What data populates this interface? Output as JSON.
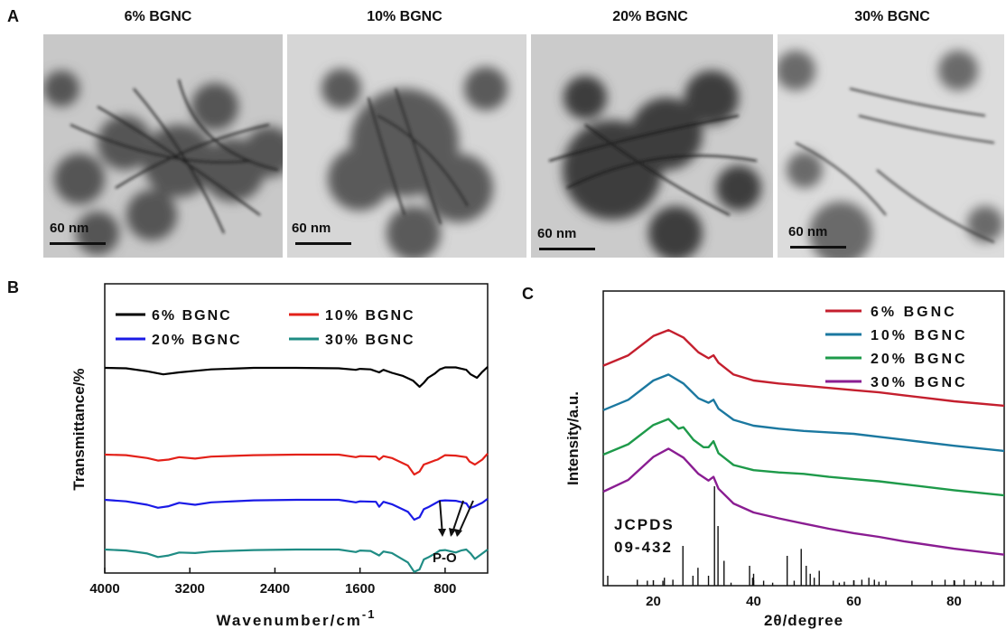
{
  "panel_a": {
    "label": "A",
    "images": [
      {
        "title": "6% BGNC",
        "scale": "60 nm"
      },
      {
        "title": "10% BGNC",
        "scale": "60 nm"
      },
      {
        "title": "20% BGNC",
        "scale": "60 nm"
      },
      {
        "title": "30% BGNC",
        "scale": "60 nm"
      }
    ]
  },
  "panel_b": {
    "label": "B"
  },
  "panel_c": {
    "label": "C"
  },
  "chart_data": [
    {
      "panel": "B",
      "type": "line",
      "xlabel": "Wavenumber/cm",
      "xlabel_superscript": "-1",
      "ylabel": "Transmittance/%",
      "xlim": [
        4000,
        400
      ],
      "xticks": [
        4000,
        3200,
        2400,
        1600,
        800
      ],
      "annotation": "P-O",
      "legend": [
        "6%   BGNC",
        "10% BGNC",
        "20% BGNC",
        "30% BGNC"
      ],
      "colors": [
        "#000000",
        "#e32119",
        "#1a1ae6",
        "#1f8c84"
      ],
      "series": [
        {
          "name": "6%   BGNC",
          "offset": 0,
          "x": [
            4000,
            3800,
            3600,
            3450,
            3300,
            3150,
            3000,
            2600,
            2200,
            1800,
            1640,
            1600,
            1500,
            1420,
            1380,
            1300,
            1200,
            1100,
            1040,
            1000,
            960,
            900,
            850,
            800,
            700,
            600,
            560,
            500,
            450,
            400
          ],
          "y": [
            100,
            99,
            93,
            87,
            91,
            94,
            97,
            100,
            100,
            99,
            96,
            98,
            97,
            91,
            96,
            90,
            84,
            74,
            62,
            70,
            80,
            88,
            97,
            101,
            101,
            96,
            87,
            80,
            92,
            102
          ]
        },
        {
          "name": "10% BGNC",
          "offset": -95,
          "x": [
            4000,
            3800,
            3600,
            3500,
            3400,
            3300,
            3150,
            3000,
            2600,
            2200,
            1800,
            1640,
            1600,
            1450,
            1420,
            1380,
            1300,
            1150,
            1090,
            1040,
            1000,
            960,
            900,
            870,
            800,
            700,
            600,
            570,
            520,
            450,
            400
          ],
          "y": [
            100,
            99,
            93,
            88,
            90,
            95,
            92,
            96,
            99,
            100,
            100,
            95,
            97,
            96,
            90,
            97,
            93,
            78,
            60,
            66,
            80,
            83,
            88,
            90,
            99,
            98,
            95,
            86,
            80,
            90,
            102
          ]
        },
        {
          "name": "20% BGNC",
          "offset": -145,
          "x": [
            4000,
            3800,
            3600,
            3500,
            3400,
            3300,
            3150,
            3000,
            2600,
            2200,
            1800,
            1640,
            1600,
            1450,
            1420,
            1380,
            1300,
            1150,
            1090,
            1040,
            1000,
            960,
            900,
            850,
            800,
            700,
            600,
            570,
            520,
            450,
            400
          ],
          "y": [
            100,
            97,
            90,
            84,
            87,
            94,
            90,
            95,
            99,
            100,
            100,
            95,
            97,
            96,
            86,
            96,
            91,
            76,
            60,
            65,
            81,
            85,
            92,
            98,
            99,
            98,
            93,
            83,
            87,
            94,
            102
          ]
        },
        {
          "name": "30% BGNC",
          "offset": -200,
          "x": [
            4000,
            3800,
            3600,
            3500,
            3400,
            3300,
            3150,
            3000,
            2600,
            2200,
            1800,
            1640,
            1600,
            1500,
            1420,
            1380,
            1300,
            1150,
            1090,
            1040,
            1000,
            960,
            900,
            850,
            800,
            700,
            650,
            600,
            560,
            520,
            450,
            400
          ],
          "y": [
            100,
            98,
            92,
            85,
            88,
            94,
            93,
            96,
            99,
            100,
            100,
            95,
            98,
            97,
            88,
            96,
            93,
            74,
            55,
            60,
            80,
            84,
            91,
            98,
            99,
            94,
            98,
            100,
            92,
            81,
            92,
            100
          ]
        }
      ]
    },
    {
      "panel": "C",
      "type": "line",
      "xlabel": "2θ/degree",
      "ylabel": "Intensity/a.u.",
      "xlim": [
        10,
        90
      ],
      "xticks": [
        20,
        40,
        60,
        80
      ],
      "legend": [
        "6%   BGNC",
        "10% BGNC",
        "20% BGNC",
        "30% BGNC"
      ],
      "colors": [
        "#c41f2e",
        "#1b78a0",
        "#1e9a4a",
        "#8a1d92"
      ],
      "series": [
        {
          "name": "6%   BGNC",
          "offset": 210,
          "x": [
            10,
            15,
            20,
            23,
            26,
            29,
            31,
            32,
            33,
            36,
            40,
            45,
            50,
            55,
            60,
            65,
            70,
            80,
            90
          ],
          "y": [
            60,
            74,
            100,
            108,
            98,
            78,
            70,
            74,
            64,
            48,
            40,
            36,
            33,
            30,
            27,
            24,
            20,
            12,
            6
          ]
        },
        {
          "name": "10% BGNC",
          "offset": 150,
          "x": [
            10,
            15,
            20,
            23,
            26,
            29,
            31,
            32,
            33,
            36,
            40,
            45,
            50,
            55,
            60,
            65,
            70,
            80,
            90
          ],
          "y": [
            60,
            74,
            100,
            108,
            96,
            76,
            70,
            74,
            62,
            47,
            39,
            35,
            32,
            30,
            28,
            24,
            20,
            12,
            5
          ]
        },
        {
          "name": "20% BGNC",
          "offset": 90,
          "x": [
            10,
            15,
            20,
            23,
            25,
            26,
            28,
            30,
            31,
            32,
            33,
            36,
            40,
            45,
            50,
            55,
            60,
            65,
            70,
            80,
            90
          ],
          "y": [
            60,
            74,
            100,
            108,
            95,
            97,
            80,
            70,
            70,
            78,
            62,
            46,
            39,
            36,
            34,
            30,
            27,
            24,
            20,
            12,
            5
          ]
        },
        {
          "name": "30% BGNC",
          "offset": 0,
          "x": [
            10,
            15,
            20,
            23,
            26,
            29,
            31,
            32,
            33,
            36,
            40,
            45,
            50,
            55,
            60,
            65,
            70,
            80,
            90
          ],
          "y": [
            100,
            116,
            147,
            158,
            146,
            124,
            115,
            120,
            104,
            84,
            72,
            64,
            57,
            50,
            44,
            39,
            33,
            23,
            15
          ]
        }
      ],
      "reference": {
        "label_line1": "JCPDS",
        "label_line2": "09-432",
        "peaks_2theta": [
          10.9,
          16.8,
          18.8,
          21.9,
          22.2,
          23.9,
          25.9,
          27.9,
          28.9,
          31.0,
          32.2,
          32.9,
          34.1,
          35.5,
          39.2,
          39.8,
          40.0,
          42.0,
          43.8,
          46.7,
          48.1,
          49.5,
          50.5,
          51.3,
          52.1,
          53.1,
          55.9,
          57.1,
          58.1,
          60.0,
          61.6,
          63.0,
          64.1,
          65.0,
          66.4,
          71.6,
          75.6,
          78.2,
          80.1,
          82.0,
          84.3,
          85.4,
          87.8
        ],
        "intensities": [
          0.1,
          0.06,
          0.05,
          0.05,
          0.08,
          0.06,
          0.4,
          0.1,
          0.18,
          0.1,
          1.0,
          0.6,
          0.25,
          0.03,
          0.2,
          0.08,
          0.12,
          0.05,
          0.03,
          0.3,
          0.05,
          0.37,
          0.2,
          0.12,
          0.08,
          0.15,
          0.05,
          0.03,
          0.04,
          0.05,
          0.06,
          0.08,
          0.06,
          0.04,
          0.05,
          0.05,
          0.05,
          0.06,
          0.05,
          0.06,
          0.05,
          0.04,
          0.05
        ]
      }
    }
  ]
}
